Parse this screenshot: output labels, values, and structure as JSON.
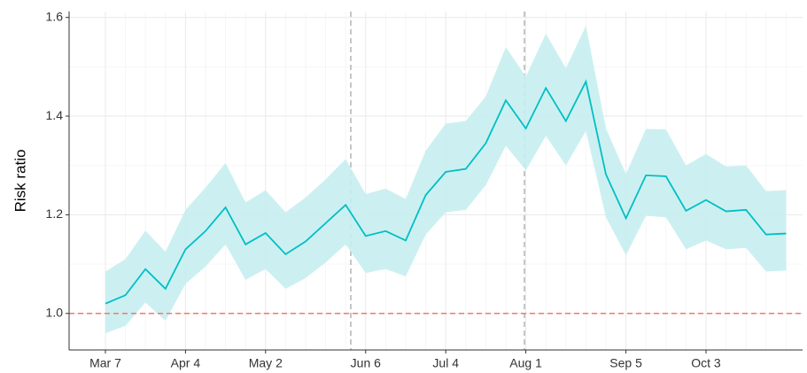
{
  "chart_data": {
    "type": "line",
    "y_label": "Risk ratio",
    "categories": [
      "Mar 7",
      null,
      null,
      null,
      "Apr 4",
      null,
      null,
      null,
      "May 2",
      null,
      null,
      null,
      null,
      "Jun 6",
      null,
      null,
      null,
      "Jul 4",
      null,
      null,
      null,
      "Aug 1",
      null,
      null,
      null,
      null,
      "Sep 5",
      null,
      null,
      null,
      "Oct 3",
      null,
      null,
      null,
      null
    ],
    "series": [
      {
        "color": "#00bfc4",
        "band_color": "#c6eef0",
        "values": [
          1.02,
          1.037,
          1.09,
          1.05,
          1.13,
          1.167,
          1.215,
          1.14,
          1.163,
          1.12,
          1.146,
          1.183,
          1.22,
          1.157,
          1.167,
          1.148,
          1.24,
          1.287,
          1.293,
          1.345,
          1.432,
          1.375,
          1.457,
          1.39,
          1.47,
          1.282,
          1.193,
          1.28,
          1.278,
          1.208,
          1.23,
          1.207,
          1.21,
          1.16,
          1.162
        ],
        "upper": [
          1.085,
          1.11,
          1.168,
          1.125,
          1.21,
          1.255,
          1.305,
          1.225,
          1.25,
          1.205,
          1.235,
          1.272,
          1.313,
          1.242,
          1.253,
          1.232,
          1.33,
          1.385,
          1.39,
          1.44,
          1.54,
          1.48,
          1.567,
          1.497,
          1.583,
          1.375,
          1.283,
          1.374,
          1.373,
          1.3,
          1.323,
          1.298,
          1.3,
          1.248,
          1.25
        ],
        "lower": [
          0.96,
          0.975,
          1.022,
          0.985,
          1.06,
          1.095,
          1.14,
          1.068,
          1.09,
          1.05,
          1.072,
          1.103,
          1.14,
          1.082,
          1.09,
          1.075,
          1.16,
          1.205,
          1.21,
          1.26,
          1.34,
          1.29,
          1.36,
          1.3,
          1.37,
          1.195,
          1.118,
          1.198,
          1.195,
          1.13,
          1.148,
          1.13,
          1.133,
          1.085,
          1.087
        ]
      }
    ],
    "ylim": [
      0.926,
      1.612
    ],
    "yticks": [
      {
        "value": 1,
        "label": "1.0"
      },
      1.2,
      1.4,
      1.6
    ],
    "y_minor_grid": [
      1.1,
      1.3,
      1.5
    ],
    "reference_line": {
      "value": 1,
      "color": "#f8766d"
    },
    "grid": true
  }
}
